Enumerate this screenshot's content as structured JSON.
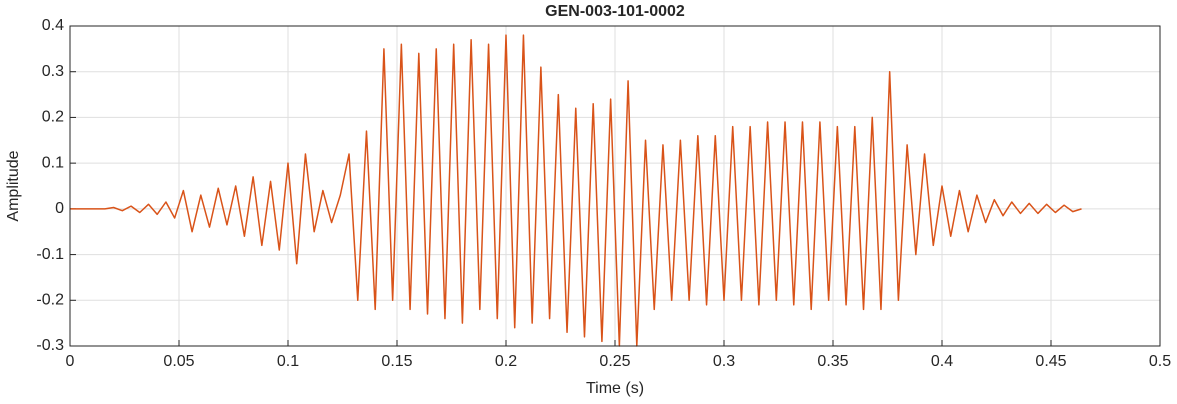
{
  "chart_data": {
    "type": "line",
    "title": "GEN-003-101-0002",
    "x_label": "Time (s)",
    "y_label": "Amplitude",
    "color": "#D95319",
    "grid": true,
    "xlim": [
      0,
      0.5
    ],
    "xticks": [
      0,
      0.05,
      0.1,
      0.15,
      0.2,
      0.25,
      0.3,
      0.35,
      0.4,
      0.45,
      0.5
    ],
    "ylim": [
      -0.3,
      0.4
    ],
    "yticks": [
      -0.3,
      -0.2,
      -0.1,
      0,
      0.1,
      0.2,
      0.3,
      0.4
    ],
    "x": [
      0,
      0.004,
      0.008,
      0.012,
      0.016,
      0.02,
      0.024,
      0.028,
      0.032,
      0.036,
      0.04,
      0.044,
      0.048,
      0.052,
      0.056,
      0.06,
      0.064,
      0.068,
      0.072,
      0.076,
      0.08,
      0.084,
      0.088,
      0.092,
      0.096,
      0.1,
      0.104,
      0.108,
      0.112,
      0.116,
      0.12,
      0.124,
      0.128,
      0.132,
      0.136,
      0.14,
      0.144,
      0.148,
      0.152,
      0.156,
      0.16,
      0.164,
      0.168,
      0.172,
      0.176,
      0.18,
      0.184,
      0.188,
      0.192,
      0.196,
      0.2,
      0.204,
      0.208,
      0.212,
      0.216,
      0.22,
      0.224,
      0.228,
      0.232,
      0.236,
      0.24,
      0.244,
      0.248,
      0.252,
      0.256,
      0.26,
      0.264,
      0.268,
      0.272,
      0.276,
      0.28,
      0.284,
      0.288,
      0.292,
      0.296,
      0.3,
      0.304,
      0.308,
      0.312,
      0.316,
      0.32,
      0.324,
      0.328,
      0.332,
      0.336,
      0.34,
      0.344,
      0.348,
      0.352,
      0.356,
      0.36,
      0.364,
      0.368,
      0.372,
      0.376,
      0.38,
      0.384,
      0.388,
      0.392,
      0.396,
      0.4,
      0.404,
      0.408,
      0.412,
      0.416,
      0.42,
      0.424,
      0.428,
      0.432,
      0.436,
      0.44,
      0.444,
      0.448,
      0.452,
      0.456,
      0.46,
      0.464
    ],
    "values": [
      0,
      0,
      0,
      0,
      0,
      0.003,
      -0.004,
      0.006,
      -0.008,
      0.01,
      -0.012,
      0.015,
      -0.02,
      0.04,
      -0.05,
      0.03,
      -0.04,
      0.045,
      -0.035,
      0.05,
      -0.06,
      0.07,
      -0.08,
      0.06,
      -0.09,
      0.1,
      -0.12,
      0.12,
      -0.05,
      0.04,
      -0.03,
      0.03,
      0.12,
      -0.2,
      0.17,
      -0.22,
      0.35,
      -0.2,
      0.36,
      -0.22,
      0.34,
      -0.23,
      0.35,
      -0.24,
      0.36,
      -0.25,
      0.37,
      -0.22,
      0.36,
      -0.24,
      0.38,
      -0.26,
      0.38,
      -0.25,
      0.31,
      -0.24,
      0.25,
      -0.27,
      0.22,
      -0.28,
      0.23,
      -0.29,
      0.24,
      -0.3,
      0.28,
      -0.3,
      0.15,
      -0.22,
      0.14,
      -0.2,
      0.15,
      -0.2,
      0.16,
      -0.21,
      0.16,
      -0.2,
      0.18,
      -0.2,
      0.18,
      -0.21,
      0.19,
      -0.2,
      0.19,
      -0.21,
      0.19,
      -0.22,
      0.19,
      -0.2,
      0.18,
      -0.21,
      0.18,
      -0.22,
      0.2,
      -0.22,
      0.3,
      -0.2,
      0.14,
      -0.1,
      0.12,
      -0.08,
      0.05,
      -0.06,
      0.04,
      -0.05,
      0.03,
      -0.03,
      0.02,
      -0.015,
      0.015,
      -0.01,
      0.012,
      -0.01,
      0.01,
      -0.008,
      0.008,
      -0.006,
      0
    ]
  }
}
